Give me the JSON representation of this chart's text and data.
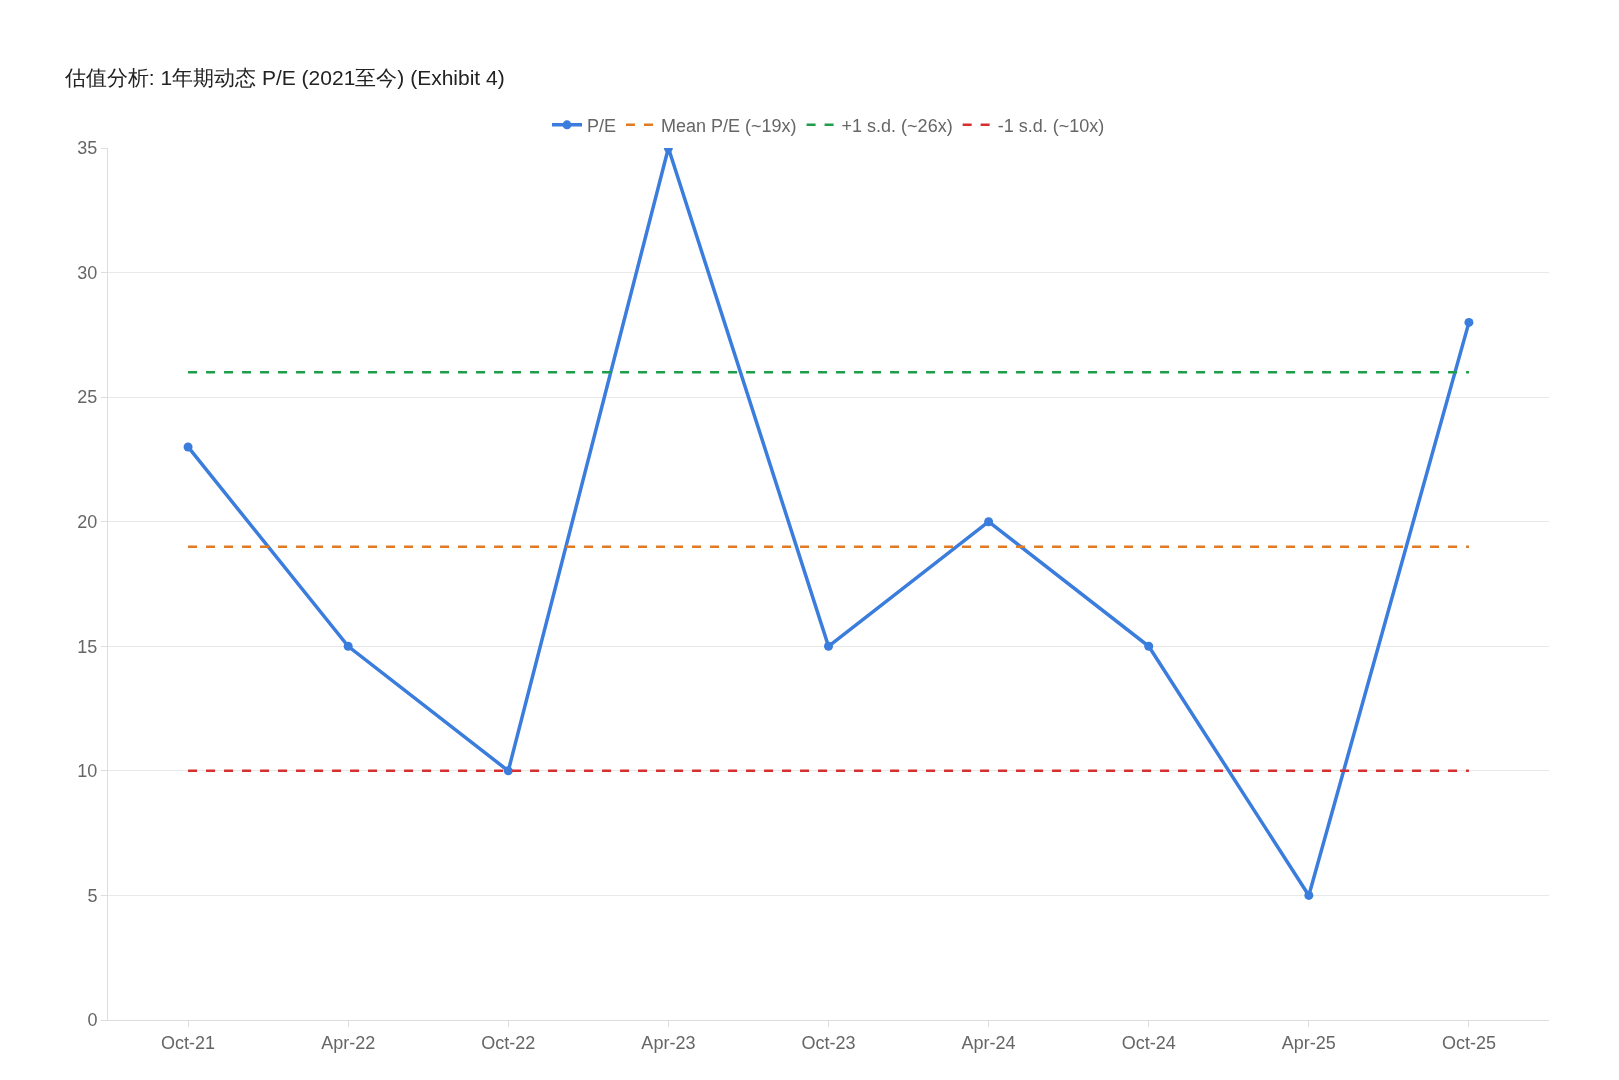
{
  "chart_data": {
    "type": "line",
    "title": "估值分析: 1年期动态 P/E (2021至今) (Exhibit 4)",
    "categories": [
      "Oct-21",
      "Apr-22",
      "Oct-22",
      "Apr-23",
      "Oct-23",
      "Apr-24",
      "Oct-24",
      "Apr-25",
      "Oct-25"
    ],
    "series": [
      {
        "name": "P/E",
        "color": "#3b7ddd",
        "values": [
          23,
          15,
          10,
          35,
          15,
          20,
          15,
          5,
          28
        ],
        "marker": "circle",
        "line_style": "solid"
      },
      {
        "name": "Mean P/E (~19x)",
        "color": "#e07b24",
        "values": [
          19,
          19,
          19,
          19,
          19,
          19,
          19,
          19,
          19
        ],
        "marker": "none",
        "line_style": "dashed"
      },
      {
        "name": "+1 s.d. (~26x)",
        "color": "#1e9e4a",
        "values": [
          26,
          26,
          26,
          26,
          26,
          26,
          26,
          26,
          26
        ],
        "marker": "none",
        "line_style": "dashed"
      },
      {
        "name": "-1 s.d. (~10x)",
        "color": "#d62f2f",
        "values": [
          10,
          10,
          10,
          10,
          10,
          10,
          10,
          10,
          10
        ],
        "marker": "none",
        "line_style": "dashed"
      }
    ],
    "ylim": [
      0,
      35
    ],
    "yticks": [
      0,
      5,
      10,
      15,
      20,
      25,
      30,
      35
    ],
    "grid": "y",
    "legend": "top"
  }
}
